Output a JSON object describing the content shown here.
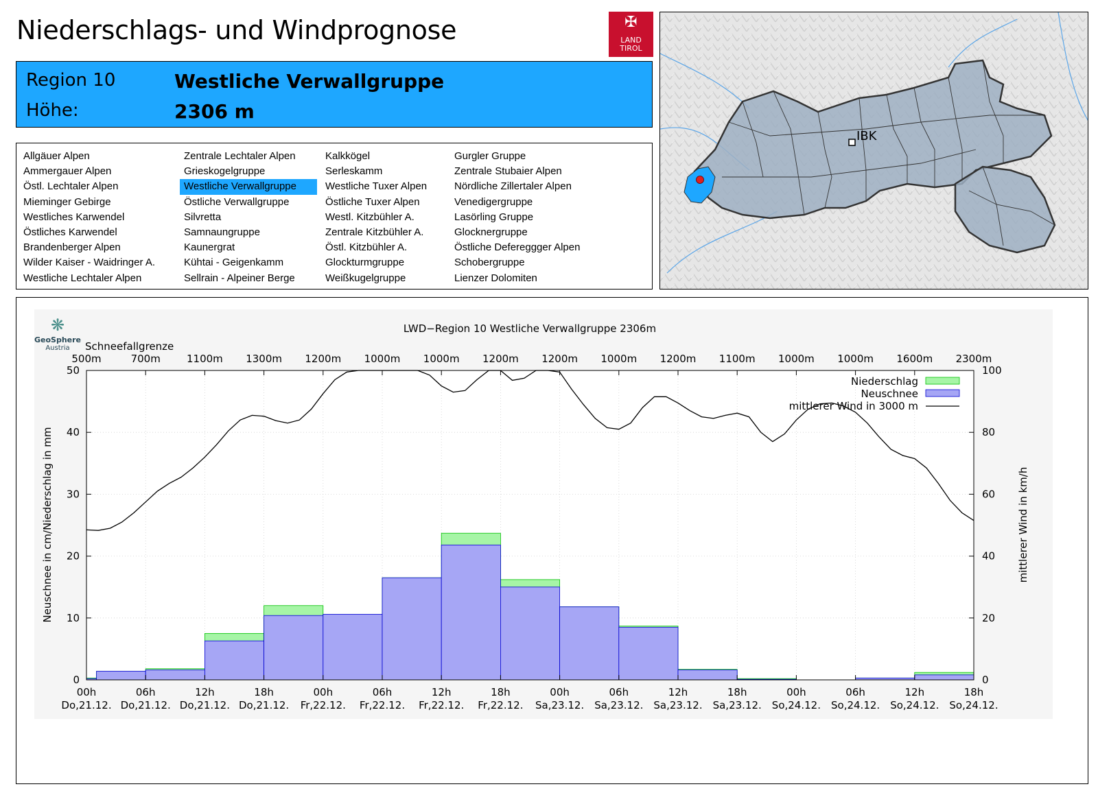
{
  "header": {
    "title": "Niederschlags- und Windprognose",
    "logo_line1": "LAND",
    "logo_line2": "TIROL",
    "region_label": "Region 10",
    "region_name": "Westliche Verwallgruppe",
    "height_label": "Höhe:",
    "height_value": "2306 m"
  },
  "regions": [
    [
      "Allgäuer Alpen",
      "Ammergauer Alpen",
      "Östl. Lechtaler Alpen",
      "Mieminger Gebirge",
      "Westliches Karwendel",
      "Östliches Karwendel",
      "Brandenberger Alpen",
      "Wilder Kaiser - Waidringer A.",
      "Westliche Lechtaler Alpen"
    ],
    [
      "Zentrale Lechtaler Alpen",
      "Grieskogelgruppe",
      "Westliche Verwallgruppe",
      "Östliche Verwallgruppe",
      "Silvretta",
      "Samnaungruppe",
      "Kaunergrat",
      "Kühtai - Geigenkamm",
      "Sellrain - Alpeiner Berge"
    ],
    [
      "Kalkkögel",
      "Serleskamm",
      "Westliche Tuxer Alpen",
      "Östliche Tuxer Alpen",
      "Westl. Kitzbühler A.",
      "Zentrale Kitzbühler A.",
      "Östl. Kitzbühler A.",
      "Glockturmgruppe",
      "Weißkugelgruppe"
    ],
    [
      "Gurgler Gruppe",
      "Zentrale Stubaier Alpen",
      "Nördliche Zillertaler Alpen",
      "Venedigergruppe",
      "Lasörling Gruppe",
      "Glocknergruppe",
      "Östliche Defereggger Alpen",
      "Schobergruppe",
      "Lienzer Dolomiten"
    ]
  ],
  "active_region": "Westliche Verwallgruppe",
  "map": {
    "city_label": "IBK"
  },
  "logo_geo": {
    "name": "GeoSphere",
    "sub": "Austria"
  },
  "colors": {
    "accent": "#1ea7ff",
    "niederschlag": "#a6f5a6",
    "neuschnee": "#a6a6f5",
    "wind": "#000000",
    "tirol_red": "#c8102e"
  },
  "chart_data": {
    "type": "bar",
    "title": "LWD−Region 10 Westliche Verwallgruppe 2306m",
    "snowline_title": "Schneefallgrenze",
    "snowline": [
      "500m",
      "700m",
      "1100m",
      "1300m",
      "1200m",
      "1000m",
      "1000m",
      "1200m",
      "1200m",
      "1000m",
      "1200m",
      "1100m",
      "1000m",
      "1000m",
      "1600m",
      "2300m"
    ],
    "x_tick_hours": [
      "00h",
      "06h",
      "12h",
      "18h",
      "00h",
      "06h",
      "12h",
      "18h",
      "00h",
      "06h",
      "12h",
      "18h",
      "00h",
      "06h",
      "12h",
      "18h"
    ],
    "x_tick_days": [
      "Do,21.12.",
      "Do,21.12.",
      "Do,21.12.",
      "Do,21.12.",
      "Fr,22.12.",
      "Fr,22.12.",
      "Fr,22.12.",
      "Fr,22.12.",
      "Sa,23.12.",
      "Sa,23.12.",
      "Sa,23.12.",
      "Sa,23.12.",
      "So,24.12.",
      "So,24.12.",
      "So,24.12.",
      "So,24.12."
    ],
    "ylabel": "Neuschnee in cm/Niederschlag in mm",
    "y2label": "mittlerer Wind in km/h",
    "ylim": [
      0,
      50
    ],
    "y2lim": [
      0,
      100
    ],
    "yticks": [
      0,
      10,
      20,
      30,
      40,
      50
    ],
    "y2ticks": [
      0,
      20,
      40,
      60,
      80,
      100
    ],
    "legend_position": "top-right",
    "bars": [
      {
        "start": 0,
        "end": 0.17,
        "niederschlag": 0.3,
        "neuschnee": 0.2
      },
      {
        "start": 0.17,
        "end": 1,
        "niederschlag": 1.4,
        "neuschnee": 1.4
      },
      {
        "start": 1,
        "end": 2,
        "niederschlag": 1.8,
        "neuschnee": 1.6
      },
      {
        "start": 2,
        "end": 3,
        "niederschlag": 7.5,
        "neuschnee": 6.3
      },
      {
        "start": 3,
        "end": 4,
        "niederschlag": 12.0,
        "neuschnee": 10.4
      },
      {
        "start": 4,
        "end": 5,
        "niederschlag": 10.6,
        "neuschnee": 10.6
      },
      {
        "start": 5,
        "end": 6,
        "niederschlag": 16.5,
        "neuschnee": 16.5
      },
      {
        "start": 6,
        "end": 7,
        "niederschlag": 23.7,
        "neuschnee": 21.8
      },
      {
        "start": 7,
        "end": 8,
        "niederschlag": 16.2,
        "neuschnee": 15.0
      },
      {
        "start": 8,
        "end": 9,
        "niederschlag": 11.8,
        "neuschnee": 11.8
      },
      {
        "start": 9,
        "end": 10,
        "niederschlag": 8.7,
        "neuschnee": 8.5
      },
      {
        "start": 10,
        "end": 11,
        "niederschlag": 1.7,
        "neuschnee": 1.6
      },
      {
        "start": 11,
        "end": 12,
        "niederschlag": 0.2,
        "neuschnee": 0.1
      },
      {
        "start": 13,
        "end": 14,
        "niederschlag": 0.3,
        "neuschnee": 0.3
      },
      {
        "start": 14,
        "end": 15,
        "niederschlag": 1.2,
        "neuschnee": 0.8
      }
    ],
    "wind": {
      "x": [
        0,
        0.2,
        0.4,
        0.6,
        0.8,
        1.0,
        1.2,
        1.4,
        1.6,
        1.8,
        2.0,
        2.2,
        2.4,
        2.6,
        2.8,
        3.0,
        3.2,
        3.4,
        3.6,
        3.8,
        4.0,
        4.2,
        4.4,
        4.6,
        4.8,
        5.0,
        5.2,
        5.4,
        5.6,
        5.8,
        6.0,
        6.2,
        6.4,
        6.6,
        6.8,
        7.0,
        7.2,
        7.4,
        7.6,
        7.8,
        8.0,
        8.2,
        8.4,
        8.6,
        8.8,
        9.0,
        9.2,
        9.4,
        9.6,
        9.8,
        10.0,
        10.2,
        10.4,
        10.6,
        10.8,
        11.0,
        11.2,
        11.4,
        11.6,
        11.8,
        12.0,
        12.2,
        12.4,
        12.6,
        12.8,
        13.0,
        13.2,
        13.4,
        13.6,
        13.8,
        14.0,
        14.2,
        14.4,
        14.6,
        14.8,
        15.0
      ],
      "values": [
        48.5,
        48.3,
        49,
        51,
        54,
        57.5,
        61,
        63.5,
        65.5,
        68.5,
        72,
        76,
        80.5,
        84,
        85.5,
        85.2,
        83.8,
        83,
        84,
        87.5,
        92.5,
        97,
        99.5,
        101,
        101,
        101,
        101.5,
        101,
        100,
        98.5,
        95,
        93,
        93.5,
        97,
        100.5,
        100,
        96.8,
        97.5,
        101,
        101.5,
        99.5,
        94,
        89,
        84.5,
        81.5,
        81,
        83,
        88,
        91.5,
        91.5,
        89.5,
        87,
        85,
        84.5,
        85.5,
        86.2,
        85,
        80,
        77,
        79.5,
        84,
        87.5,
        89.2,
        89.5,
        88.5,
        86.5,
        83,
        78.5,
        74.5,
        72.5,
        71.5,
        68.5,
        63.5,
        58,
        54,
        51.5
      ]
    }
  }
}
